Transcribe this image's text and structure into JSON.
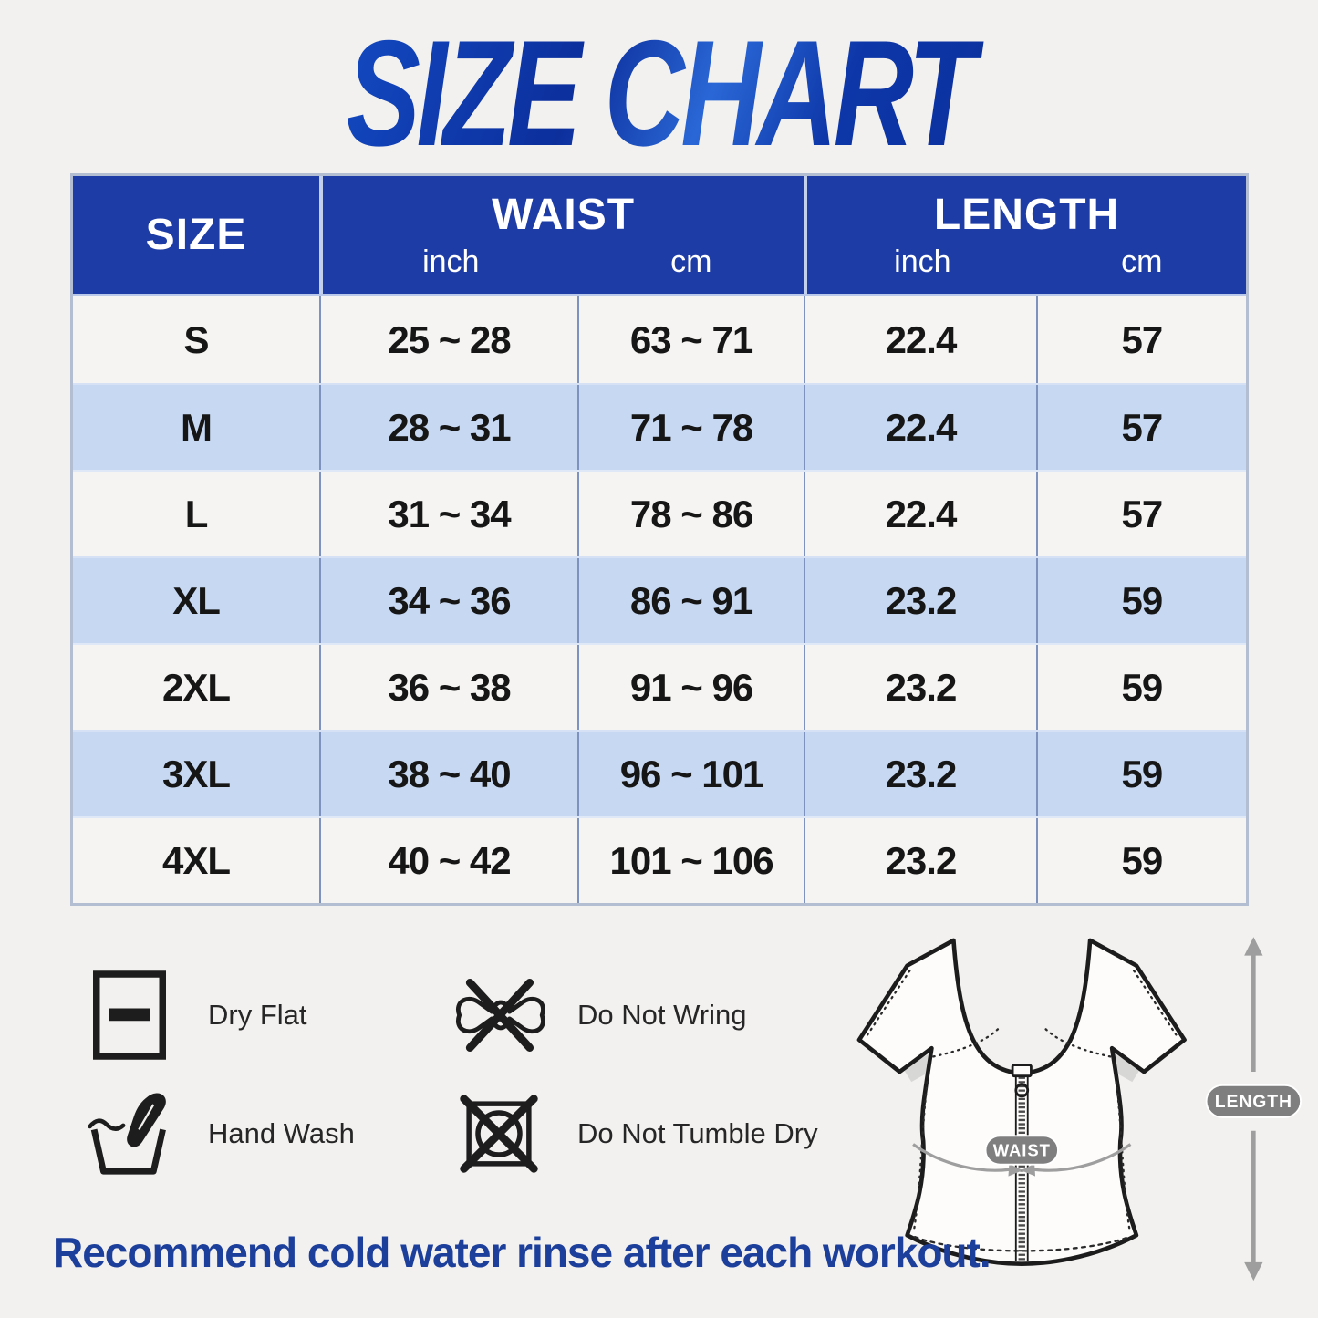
{
  "page": {
    "title": "SIZE CHART",
    "footer_note": "Recommend cold water rinse after each workout."
  },
  "chart_data": {
    "type": "table",
    "title": "SIZE CHART",
    "header_groups": [
      {
        "label": "SIZE",
        "units": []
      },
      {
        "label": "WAIST",
        "units": [
          "inch",
          "cm"
        ]
      },
      {
        "label": "LENGTH",
        "units": [
          "inch",
          "cm"
        ]
      }
    ],
    "columns": [
      "SIZE",
      "WAIST (inch)",
      "WAIST (cm)",
      "LENGTH (inch)",
      "LENGTH (cm)"
    ],
    "rows": [
      {
        "size": "S",
        "waist_inch": "25 ~ 28",
        "waist_cm": "63 ~ 71",
        "length_inch": "22.4",
        "length_cm": "57"
      },
      {
        "size": "M",
        "waist_inch": "28 ~ 31",
        "waist_cm": "71 ~ 78",
        "length_inch": "22.4",
        "length_cm": "57"
      },
      {
        "size": "L",
        "waist_inch": "31 ~ 34",
        "waist_cm": "78 ~ 86",
        "length_inch": "22.4",
        "length_cm": "57"
      },
      {
        "size": "XL",
        "waist_inch": "34 ~ 36",
        "waist_cm": "86 ~ 91",
        "length_inch": "23.2",
        "length_cm": "59"
      },
      {
        "size": "2XL",
        "waist_inch": "36 ~ 38",
        "waist_cm": "91 ~ 96",
        "length_inch": "23.2",
        "length_cm": "59"
      },
      {
        "size": "3XL",
        "waist_inch": "38 ~ 40",
        "waist_cm": "96 ~ 101",
        "length_inch": "23.2",
        "length_cm": "59"
      },
      {
        "size": "4XL",
        "waist_inch": "40 ~ 42",
        "waist_cm": "101 ~ 106",
        "length_inch": "23.2",
        "length_cm": "59"
      }
    ]
  },
  "care": {
    "items": [
      {
        "icon": "dry-flat-icon",
        "label": "Dry Flat"
      },
      {
        "icon": "do-not-wring-icon",
        "label": "Do Not Wring"
      },
      {
        "icon": "hand-wash-icon",
        "label": "Hand Wash"
      },
      {
        "icon": "do-not-tumble-dry-icon",
        "label": "Do Not Tumble Dry"
      }
    ]
  },
  "diagram": {
    "waist_label": "WAIST",
    "length_label": "LENGTH"
  },
  "colors": {
    "header_bg": "#1e3ca6",
    "row_bg": "#f5f4f2",
    "row_alt_bg": "#c7d8f3",
    "title_blue": "#0d36a8",
    "footer_blue": "#1c3f9c",
    "page_bg": "#f3f1ef",
    "divider": "#7e92be",
    "badge_gray": "#7f7f7f"
  }
}
